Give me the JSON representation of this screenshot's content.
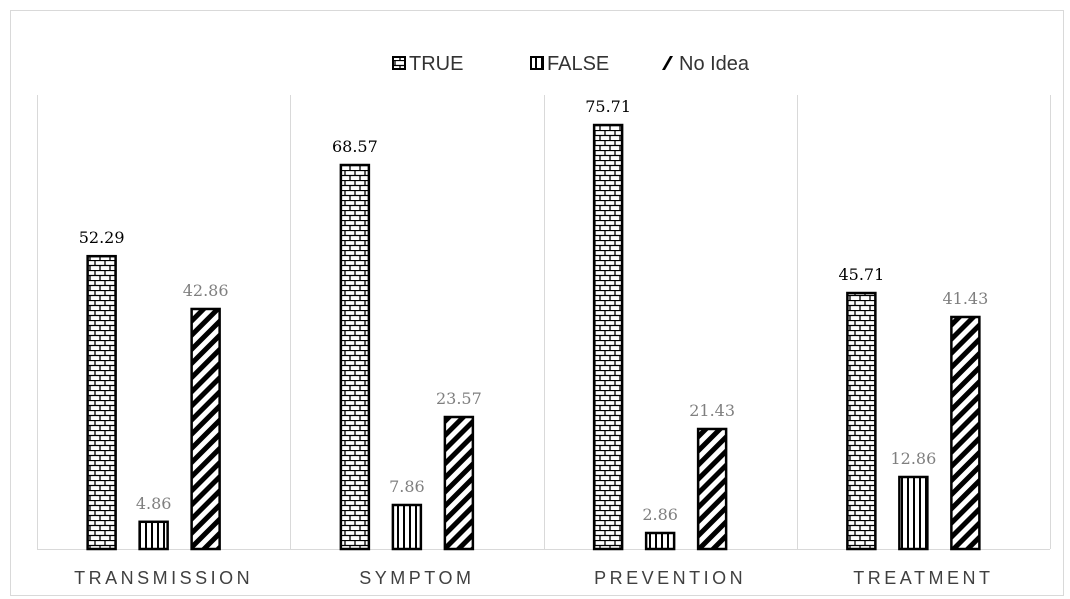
{
  "chart_data": {
    "type": "bar",
    "categories": [
      "TRANSMISSION",
      "SYMPTOM",
      "PREVENTION",
      "TREATMENT"
    ],
    "series": [
      {
        "name": "TRUE",
        "values": [
          52.29,
          68.57,
          75.71,
          45.71
        ],
        "pattern": "brick"
      },
      {
        "name": "FALSE",
        "values": [
          4.86,
          7.86,
          2.86,
          12.86
        ],
        "pattern": "vertical-lines"
      },
      {
        "name": "No Idea",
        "values": [
          42.86,
          23.57,
          21.43,
          41.43
        ],
        "pattern": "diagonal-stripes"
      }
    ],
    "value_labels": [
      [
        "52.29",
        "68.57",
        "75.71",
        "45.71"
      ],
      [
        "4.86",
        "7.86",
        "2.86",
        "12.86"
      ],
      [
        "42.86",
        "23.57",
        "21.43",
        "41.43"
      ]
    ],
    "value_label_colors": [
      "#000000",
      "#7f7f7f",
      "#7f7f7f"
    ],
    "legend_position": "top",
    "gridlines": "vertical-category-separators",
    "ylim": [
      0,
      80
    ],
    "bar_color": "#000000",
    "separator_color": "#d9d9d9"
  }
}
